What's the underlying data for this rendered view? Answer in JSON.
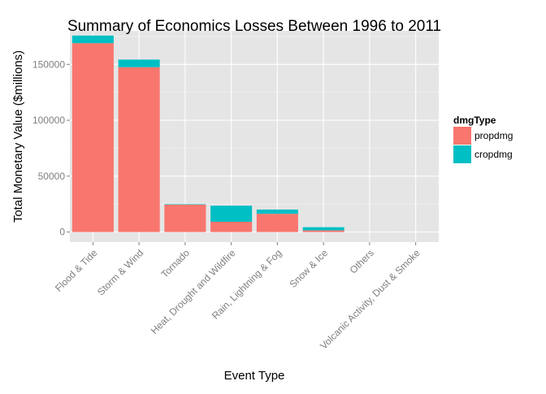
{
  "chart_data": {
    "type": "bar",
    "stacked": true,
    "title": "Summary of Economics Losses Between 1996 to 2011",
    "xlabel": "Event Type",
    "ylabel": "Total Monetary Value ($millions)",
    "categories": [
      "Flood & Tide",
      "Storm & Wind",
      "Tornado",
      "Heat, Drought and Wildfire",
      "Rain, Lightning & Fog",
      "Snow & Ice",
      "Others",
      "Volcanic Activity, Dust & Smoke"
    ],
    "series": [
      {
        "name": "propdmg",
        "color": "#F8766D",
        "values": [
          169000,
          147500,
          24500,
          9200,
          16300,
          1500,
          10,
          2
        ]
      },
      {
        "name": "cropdmg",
        "color": "#00BFC4",
        "values": [
          6800,
          6800,
          400,
          14400,
          3800,
          2800,
          5,
          1
        ]
      }
    ],
    "ylim": [
      -9000,
      180000
    ],
    "yticks": [
      0,
      50000,
      100000,
      150000
    ],
    "ytick_labels": [
      "0",
      "50000",
      "100000",
      "150000"
    ],
    "grid": true,
    "legend": {
      "title": "dmgType",
      "position": "right"
    },
    "colors": {
      "panel_background": "#E5E5E5",
      "grid_major": "#FFFFFF",
      "grid_minor": "#F2F2F2"
    }
  }
}
